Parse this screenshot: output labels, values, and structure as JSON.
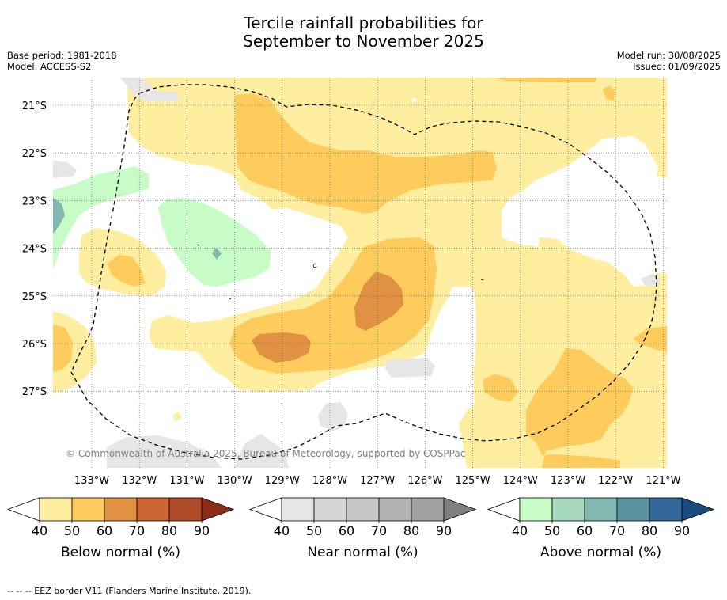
{
  "title_line1": "Tercile rainfall probabilities for",
  "title_line2": "September to November 2025",
  "base_period": "Base period: 1981-2018",
  "model": "Model: ACCESS-S2",
  "model_run": "Model run: 30/08/2025",
  "issued": "Issued: 01/09/2025",
  "copyright": "© Commonwealth of Australia 2025, Bureau of Meteorology, supported by COSPPac",
  "footnote": "--  --  -- EEZ border V11 (Flanders Marine Institute, 2019).",
  "map": {
    "lat_labels": [
      "21°S",
      "22°S",
      "23°S",
      "24°S",
      "25°S",
      "26°S",
      "27°S"
    ],
    "lon_labels": [
      "133°W",
      "132°W",
      "131°W",
      "130°W",
      "129°W",
      "128°W",
      "127°W",
      "126°W",
      "125°W",
      "124°W",
      "123°W",
      "122°W",
      "121°W"
    ]
  },
  "colorbars": [
    {
      "title": "Below normal (%)",
      "ticks": [
        "40",
        "50",
        "60",
        "70",
        "80",
        "90"
      ],
      "colors": [
        "#ffeda0",
        "#fecc5c",
        "#e09142",
        "#cc6433",
        "#b04b2a",
        "#8c2d18"
      ]
    },
    {
      "title": "Near normal (%)",
      "ticks": [
        "40",
        "50",
        "60",
        "70",
        "80",
        "90"
      ],
      "colors": [
        "#e6e6e6",
        "#d6d6d6",
        "#c6c6c6",
        "#b3b3b3",
        "#a1a1a1",
        "#808080"
      ]
    },
    {
      "title": "Above normal (%)",
      "ticks": [
        "40",
        "50",
        "60",
        "70",
        "80",
        "90"
      ],
      "colors": [
        "#c7fcc7",
        "#a6d9bc",
        "#82b8b0",
        "#5a93a0",
        "#33699a",
        "#1a4a80"
      ]
    }
  ],
  "colors": {
    "below_40": "#ffeda0",
    "below_50": "#fecc5c",
    "below_60": "#e09142",
    "near_40": "#e6e6e6",
    "above_40": "#c7fcc7",
    "above_60": "#82b8b0"
  }
}
